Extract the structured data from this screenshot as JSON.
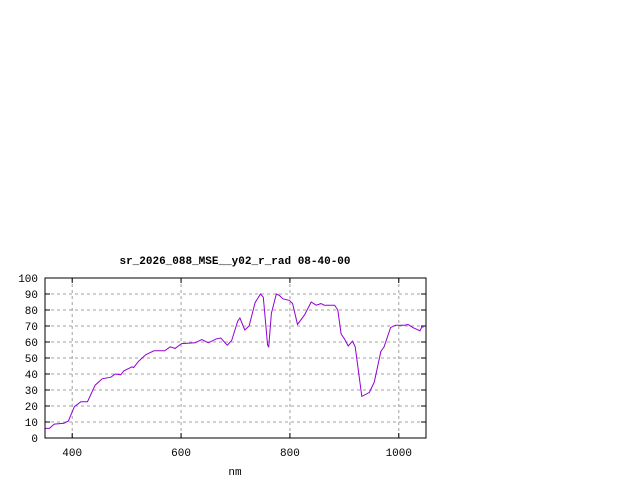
{
  "chart_data": {
    "type": "line",
    "title": "sr_2026_088_MSE__y02_r_rad 08-40-00",
    "xlabel": "nm",
    "ylabel": "",
    "xlim": [
      350,
      1050
    ],
    "ylim": [
      0,
      100
    ],
    "xticks": [
      400,
      600,
      800,
      1000
    ],
    "yticks": [
      0,
      10,
      20,
      30,
      40,
      50,
      60,
      70,
      80,
      90,
      100
    ],
    "grid": true,
    "line_color": "#9400d3",
    "series": [
      {
        "x": [
          349,
          358,
          367,
          385,
          393,
          404,
          416,
          428,
          442,
          455,
          471,
          479,
          489,
          495,
          510,
          513,
          522,
          535,
          550,
          570,
          580,
          589,
          601,
          626,
          638,
          650,
          665,
          673,
          685,
          693,
          704,
          708,
          717,
          725,
          736,
          746,
          751,
          759,
          761,
          766,
          775,
          781,
          787,
          799,
          805,
          814,
          827,
          839,
          848,
          857,
          863,
          882,
          888,
          894,
          900,
          907,
          915,
          920,
          932,
          946,
          955,
          967,
          973,
          985,
          994,
          1011,
          1017,
          1026,
          1039,
          1043,
          1045
        ],
        "y": [
          6,
          6,
          8.7,
          9.2,
          10.6,
          19.6,
          22.7,
          22.7,
          33,
          37,
          38,
          40,
          39.5,
          42,
          44.5,
          44,
          48,
          52,
          54.5,
          54.5,
          57,
          56,
          59,
          59.5,
          61.5,
          59.5,
          62,
          62.5,
          58,
          61,
          73,
          75,
          67.5,
          70,
          84.6,
          90,
          88,
          58,
          57,
          78,
          90,
          89,
          87,
          86,
          84,
          71,
          77,
          85,
          83,
          84,
          83,
          83,
          80,
          65,
          62,
          57.5,
          60.5,
          57,
          26,
          28.5,
          35,
          54,
          57,
          69,
          70.5,
          70.5,
          71,
          69,
          67,
          70,
          69
        ]
      }
    ]
  }
}
